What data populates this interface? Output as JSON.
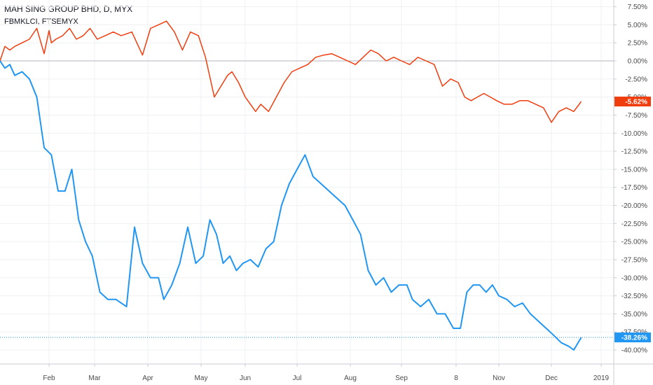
{
  "header": {
    "title": "MAH SING GROUP BHD, D, MYX",
    "compare_label": "FBMKLCI, FTSEMYX"
  },
  "chart_data": {
    "type": "line",
    "y_unit": "%",
    "ylim": [
      -42,
      8
    ],
    "y_ticks": [
      "7.50%",
      "5.00%",
      "2.50%",
      "0.00%",
      "-2.50%",
      "-5.00%",
      "-7.50%",
      "-10.00%",
      "-12.50%",
      "-15.00%",
      "-17.50%",
      "-20.00%",
      "-22.50%",
      "-25.00%",
      "-27.50%",
      "-30.00%",
      "-32.50%",
      "-35.00%",
      "-37.50%",
      "-40.00%"
    ],
    "y_tick_values": [
      7.5,
      5,
      2.5,
      0,
      -2.5,
      -5,
      -7.5,
      -10,
      -12.5,
      -15,
      -17.5,
      -20,
      -22.5,
      -25,
      -27.5,
      -30,
      -32.5,
      -35,
      -37.5,
      -40
    ],
    "x_ticks": [
      "Feb",
      "Mar",
      "Apr",
      "May",
      "Jun",
      "Jul",
      "Aug",
      "Sep",
      "8",
      "Nov",
      "Dec",
      "2019"
    ],
    "x_tick_positions": [
      1.0,
      2.0,
      3.0,
      4.0,
      5.0,
      6.0,
      7.0,
      8.0,
      9.0,
      10.0,
      11.0,
      12.0
    ],
    "grid": true,
    "series": [
      {
        "name": "FBMKLCI, FTSEMYX",
        "color": "#f03d0e",
        "last_value_label": "-5.62%",
        "last_value": -5.62,
        "x": [
          0.0,
          0.1,
          0.2,
          0.3,
          0.45,
          0.6,
          0.75,
          0.9,
          1.0,
          1.05,
          1.15,
          1.3,
          1.45,
          1.6,
          1.75,
          1.9,
          2.05,
          2.2,
          2.35,
          2.5,
          2.7,
          2.9,
          3.05,
          3.2,
          3.35,
          3.5,
          3.65,
          3.8,
          3.95,
          4.1,
          4.3,
          4.5,
          4.6,
          4.7,
          4.85,
          5.0,
          5.1,
          5.2,
          5.3,
          5.45,
          5.6,
          5.75,
          5.9,
          6.05,
          6.2,
          6.35,
          6.5,
          6.65,
          6.8,
          6.95,
          7.1,
          7.25,
          7.4,
          7.55,
          7.7,
          7.85,
          8.0,
          8.15,
          8.3,
          8.45,
          8.6,
          8.75,
          8.9,
          9.05,
          9.2,
          9.35,
          9.5,
          9.65,
          9.8,
          9.95,
          10.1,
          10.25,
          10.4,
          10.55,
          10.7,
          10.85,
          11.0,
          11.15,
          11.3,
          11.45,
          11.6
        ],
        "y": [
          0.0,
          2.0,
          1.5,
          2.0,
          2.5,
          3.0,
          4.5,
          1.0,
          4.2,
          2.5,
          3.0,
          3.5,
          4.5,
          3.0,
          3.5,
          4.5,
          3.0,
          3.5,
          4.0,
          3.5,
          4.0,
          0.8,
          4.5,
          5.0,
          5.5,
          4.0,
          1.5,
          4.0,
          3.5,
          0.5,
          -5.0,
          -3.0,
          -2.0,
          -1.5,
          -3.0,
          -5.0,
          -6.0,
          -7.0,
          -6.0,
          -7.0,
          -5.0,
          -3.0,
          -1.5,
          -1.0,
          -0.5,
          0.5,
          0.8,
          1.0,
          0.5,
          0.0,
          -0.5,
          0.5,
          1.5,
          1.0,
          0.0,
          0.5,
          0.0,
          -0.5,
          0.5,
          0.0,
          -0.5,
          -3.5,
          -2.5,
          -3.0,
          -5.0,
          -5.5,
          -5.0,
          -4.5,
          -5.0,
          -5.5,
          -6.0,
          -6.0,
          -5.5,
          -5.5,
          -6.0,
          -6.5,
          -8.5,
          -7.0,
          -6.5,
          -7.0,
          -5.62
        ]
      },
      {
        "name": "MAH SING GROUP BHD",
        "color": "#2196f3",
        "last_value_label": "-38.26%",
        "last_value": -38.26,
        "x": [
          0.0,
          0.1,
          0.2,
          0.3,
          0.45,
          0.6,
          0.75,
          0.9,
          1.05,
          1.2,
          1.35,
          1.5,
          1.65,
          1.8,
          1.95,
          2.1,
          2.25,
          2.4,
          2.5,
          2.6,
          2.75,
          2.9,
          3.05,
          3.2,
          3.3,
          3.45,
          3.6,
          3.75,
          3.9,
          4.05,
          4.2,
          4.35,
          4.5,
          4.65,
          4.8,
          4.95,
          5.1,
          5.25,
          5.4,
          5.55,
          5.7,
          5.85,
          6.0,
          6.15,
          6.3,
          6.45,
          6.6,
          6.75,
          6.9,
          7.05,
          7.2,
          7.35,
          7.5,
          7.65,
          7.8,
          7.95,
          8.1,
          8.2,
          8.35,
          8.5,
          8.65,
          8.8,
          8.95,
          9.1,
          9.25,
          9.4,
          9.55,
          9.7,
          9.85,
          10.0,
          10.15,
          10.3,
          10.45,
          10.6,
          10.75,
          10.9,
          11.05,
          11.2,
          11.35,
          11.45,
          11.6
        ],
        "y": [
          0.0,
          -1.0,
          -0.5,
          -2.0,
          -1.5,
          -2.5,
          -5.0,
          -12.0,
          -13.0,
          -18.0,
          -18.0,
          -15.0,
          -22.0,
          -25.0,
          -27.0,
          -32.0,
          -33.0,
          -33.0,
          -33.5,
          -34.0,
          -23.0,
          -28.0,
          -30.0,
          -30.0,
          -33.0,
          -31.0,
          -28.0,
          -23.0,
          -28.0,
          -27.0,
          -22.0,
          -24.0,
          -28.0,
          -27.0,
          -29.0,
          -28.0,
          -27.5,
          -28.5,
          -26.0,
          -25.0,
          -20.0,
          -17.0,
          -15.0,
          -13.0,
          -16.0,
          -17.0,
          -18.0,
          -19.0,
          -20.0,
          -22.0,
          -24.0,
          -29.0,
          -31.0,
          -30.0,
          -32.0,
          -31.0,
          -31.0,
          -33.0,
          -34.0,
          -33.0,
          -35.0,
          -35.0,
          -37.0,
          -37.0,
          -32.0,
          -31.0,
          -31.0,
          -32.0,
          -31.0,
          -32.5,
          -33.0,
          -34.0,
          -33.5,
          -35.0,
          -36.0,
          -37.0,
          -38.0,
          -39.0,
          -39.5,
          -40.0,
          -38.26
        ]
      }
    ]
  }
}
